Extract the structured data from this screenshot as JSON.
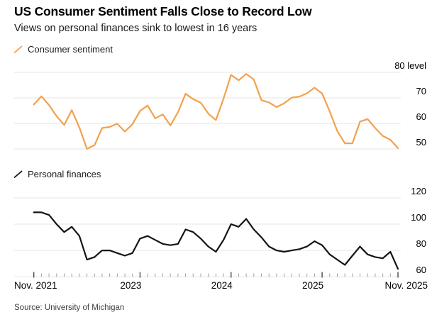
{
  "header": {
    "title": "US Consumer Sentiment Falls Close to Record Low",
    "subtitle": "Views on personal finances sink to lowest in 16 years"
  },
  "source": "Source: University of Michigan",
  "colors": {
    "sentiment_line": "#F3A14C",
    "finances_line": "#141414",
    "gridline": "#e6e6e6",
    "minor_tick": "#a3a3a3",
    "major_tick": "#3c3c3c",
    "axis_text": "#000000"
  },
  "x_axis": {
    "unit": "month",
    "range": [
      "Nov 2021",
      "Nov 2025"
    ],
    "tick_labels": [
      "Nov. 2021",
      "2023",
      "2024",
      "2025",
      "Nov. 2025"
    ],
    "major_tick_month_indices": [
      0,
      14,
      26,
      38,
      48
    ]
  },
  "chart_data": [
    {
      "type": "line",
      "series_name": "Consumer sentiment",
      "color_key": "sentiment_line",
      "x_start": "Nov 2021",
      "x_end": "Nov 2025",
      "x_step": "month",
      "ylim": [
        47,
        82
      ],
      "yticks": [
        50,
        60,
        70,
        80
      ],
      "ytick_labels": [
        "50",
        "60",
        "70",
        "80 level"
      ],
      "grid": true,
      "legend_position": "top-left",
      "values": [
        67.4,
        70.6,
        67.2,
        62.8,
        59.4,
        65.2,
        58.4,
        50.0,
        51.5,
        58.2,
        58.6,
        59.9,
        56.8,
        59.7,
        64.9,
        67.0,
        62.0,
        63.5,
        59.2,
        64.4,
        71.6,
        69.5,
        68.1,
        63.8,
        61.3,
        69.7,
        79.0,
        76.9,
        79.4,
        77.2,
        69.1,
        68.2,
        66.4,
        67.9,
        70.1,
        70.5,
        71.8,
        74.0,
        71.7,
        64.7,
        57.0,
        52.2,
        52.2,
        60.7,
        61.7,
        58.2,
        55.1,
        53.6,
        50.3
      ]
    },
    {
      "type": "line",
      "series_name": "Personal finances",
      "color_key": "finances_line",
      "x_start": "Nov 2021",
      "x_end": "Nov 2025",
      "x_step": "month",
      "ylim": [
        58,
        122
      ],
      "yticks": [
        60,
        80,
        100,
        120
      ],
      "ytick_labels": [
        "60",
        "80",
        "100",
        "120"
      ],
      "grid": true,
      "legend_position": "top-left",
      "values": [
        109,
        109,
        107,
        100,
        94,
        98,
        91,
        73,
        75,
        80,
        80,
        78,
        76,
        78,
        89,
        91,
        88,
        85,
        84,
        85,
        96,
        94,
        89,
        83,
        79,
        88,
        100,
        98,
        104,
        96,
        90,
        83,
        80,
        79,
        80,
        81,
        83,
        87,
        84,
        77,
        73,
        69,
        76,
        83,
        77,
        75,
        74,
        79,
        66
      ]
    }
  ]
}
